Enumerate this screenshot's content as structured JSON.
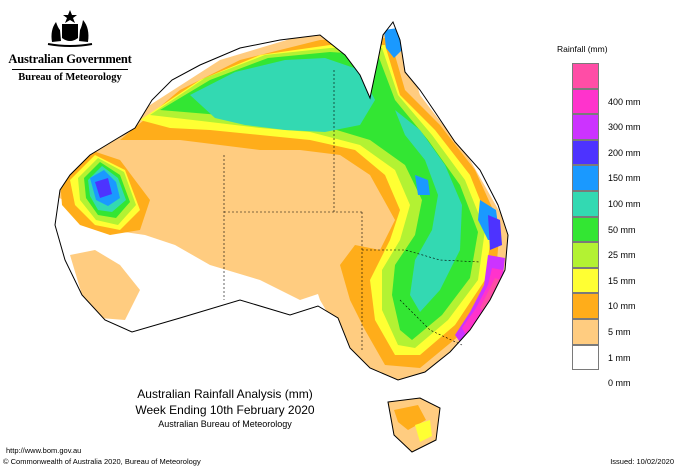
{
  "header": {
    "government": "Australian Government",
    "bureau": "Bureau of Meteorology"
  },
  "legend": {
    "title": "Rainfall (mm)",
    "items": [
      {
        "label": "",
        "color": "#ff4da6"
      },
      {
        "label": "400 mm",
        "color": "#ff33cc"
      },
      {
        "label": "300 mm",
        "color": "#cc33ff"
      },
      {
        "label": "200 mm",
        "color": "#4d33ff"
      },
      {
        "label": "150 mm",
        "color": "#1a99ff"
      },
      {
        "label": "100 mm",
        "color": "#33d9b2"
      },
      {
        "label": "50 mm",
        "color": "#33e633"
      },
      {
        "label": "25 mm",
        "color": "#b3f233"
      },
      {
        "label": "15 mm",
        "color": "#ffff33"
      },
      {
        "label": "10 mm",
        "color": "#ffad1a"
      },
      {
        "label": "5 mm",
        "color": "#ffcc80"
      },
      {
        "label": "1 mm",
        "color": "#ffffff"
      },
      {
        "label": "0 mm",
        "color": "#ffffff"
      }
    ]
  },
  "caption": {
    "line1": "Australian Rainfall Analysis (mm)",
    "line2": "Week Ending 10th February 2020",
    "line3": "Australian Bureau of Meteorology"
  },
  "footer": {
    "url": "http://www.bom.gov.au",
    "copyright": "© Commonwealth of Australia 2020, Bureau of Meteorology",
    "issued": "Issued: 10/02/2020"
  }
}
